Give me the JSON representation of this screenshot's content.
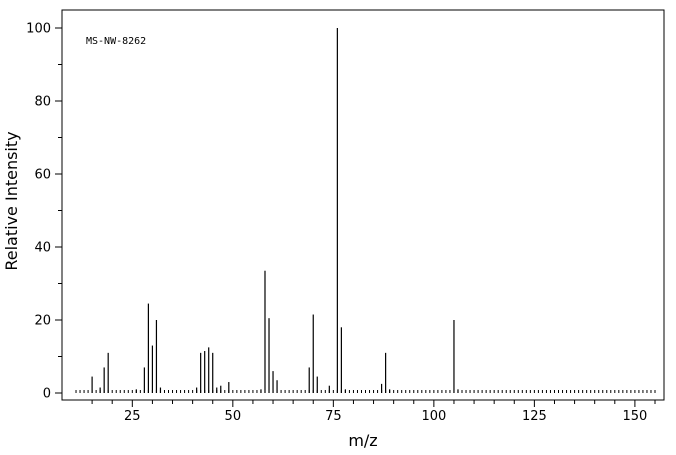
{
  "chart_data": {
    "type": "bar",
    "annotation": "MS-NW-8262",
    "xlabel": "m/z",
    "ylabel": "Relative Intensity",
    "xlim": [
      10,
      155
    ],
    "ylim": [
      0,
      105
    ],
    "x_ticks": [
      25,
      50,
      75,
      100,
      125,
      150
    ],
    "y_ticks": [
      0,
      20,
      40,
      60,
      80,
      100
    ],
    "grid": false,
    "peaks": [
      {
        "x": 15,
        "y": 4.5
      },
      {
        "x": 17,
        "y": 1.5
      },
      {
        "x": 18,
        "y": 7
      },
      {
        "x": 19,
        "y": 11
      },
      {
        "x": 26,
        "y": 1
      },
      {
        "x": 28,
        "y": 7
      },
      {
        "x": 29,
        "y": 24.5
      },
      {
        "x": 30,
        "y": 13
      },
      {
        "x": 31,
        "y": 20
      },
      {
        "x": 32,
        "y": 1.5
      },
      {
        "x": 41,
        "y": 1.5
      },
      {
        "x": 42,
        "y": 11
      },
      {
        "x": 43,
        "y": 11.5
      },
      {
        "x": 44,
        "y": 12.5
      },
      {
        "x": 45,
        "y": 11
      },
      {
        "x": 46,
        "y": 1.5
      },
      {
        "x": 47,
        "y": 2
      },
      {
        "x": 49,
        "y": 3
      },
      {
        "x": 57,
        "y": 1
      },
      {
        "x": 58,
        "y": 33.5
      },
      {
        "x": 59,
        "y": 20.5
      },
      {
        "x": 60,
        "y": 6
      },
      {
        "x": 61,
        "y": 3.5
      },
      {
        "x": 69,
        "y": 7
      },
      {
        "x": 70,
        "y": 21.5
      },
      {
        "x": 71,
        "y": 4.5
      },
      {
        "x": 74,
        "y": 2
      },
      {
        "x": 76,
        "y": 100
      },
      {
        "x": 77,
        "y": 18
      },
      {
        "x": 78,
        "y": 1
      },
      {
        "x": 87,
        "y": 2.5
      },
      {
        "x": 88,
        "y": 11
      },
      {
        "x": 89,
        "y": 1
      },
      {
        "x": 105,
        "y": 20
      },
      {
        "x": 106,
        "y": 1
      }
    ]
  }
}
